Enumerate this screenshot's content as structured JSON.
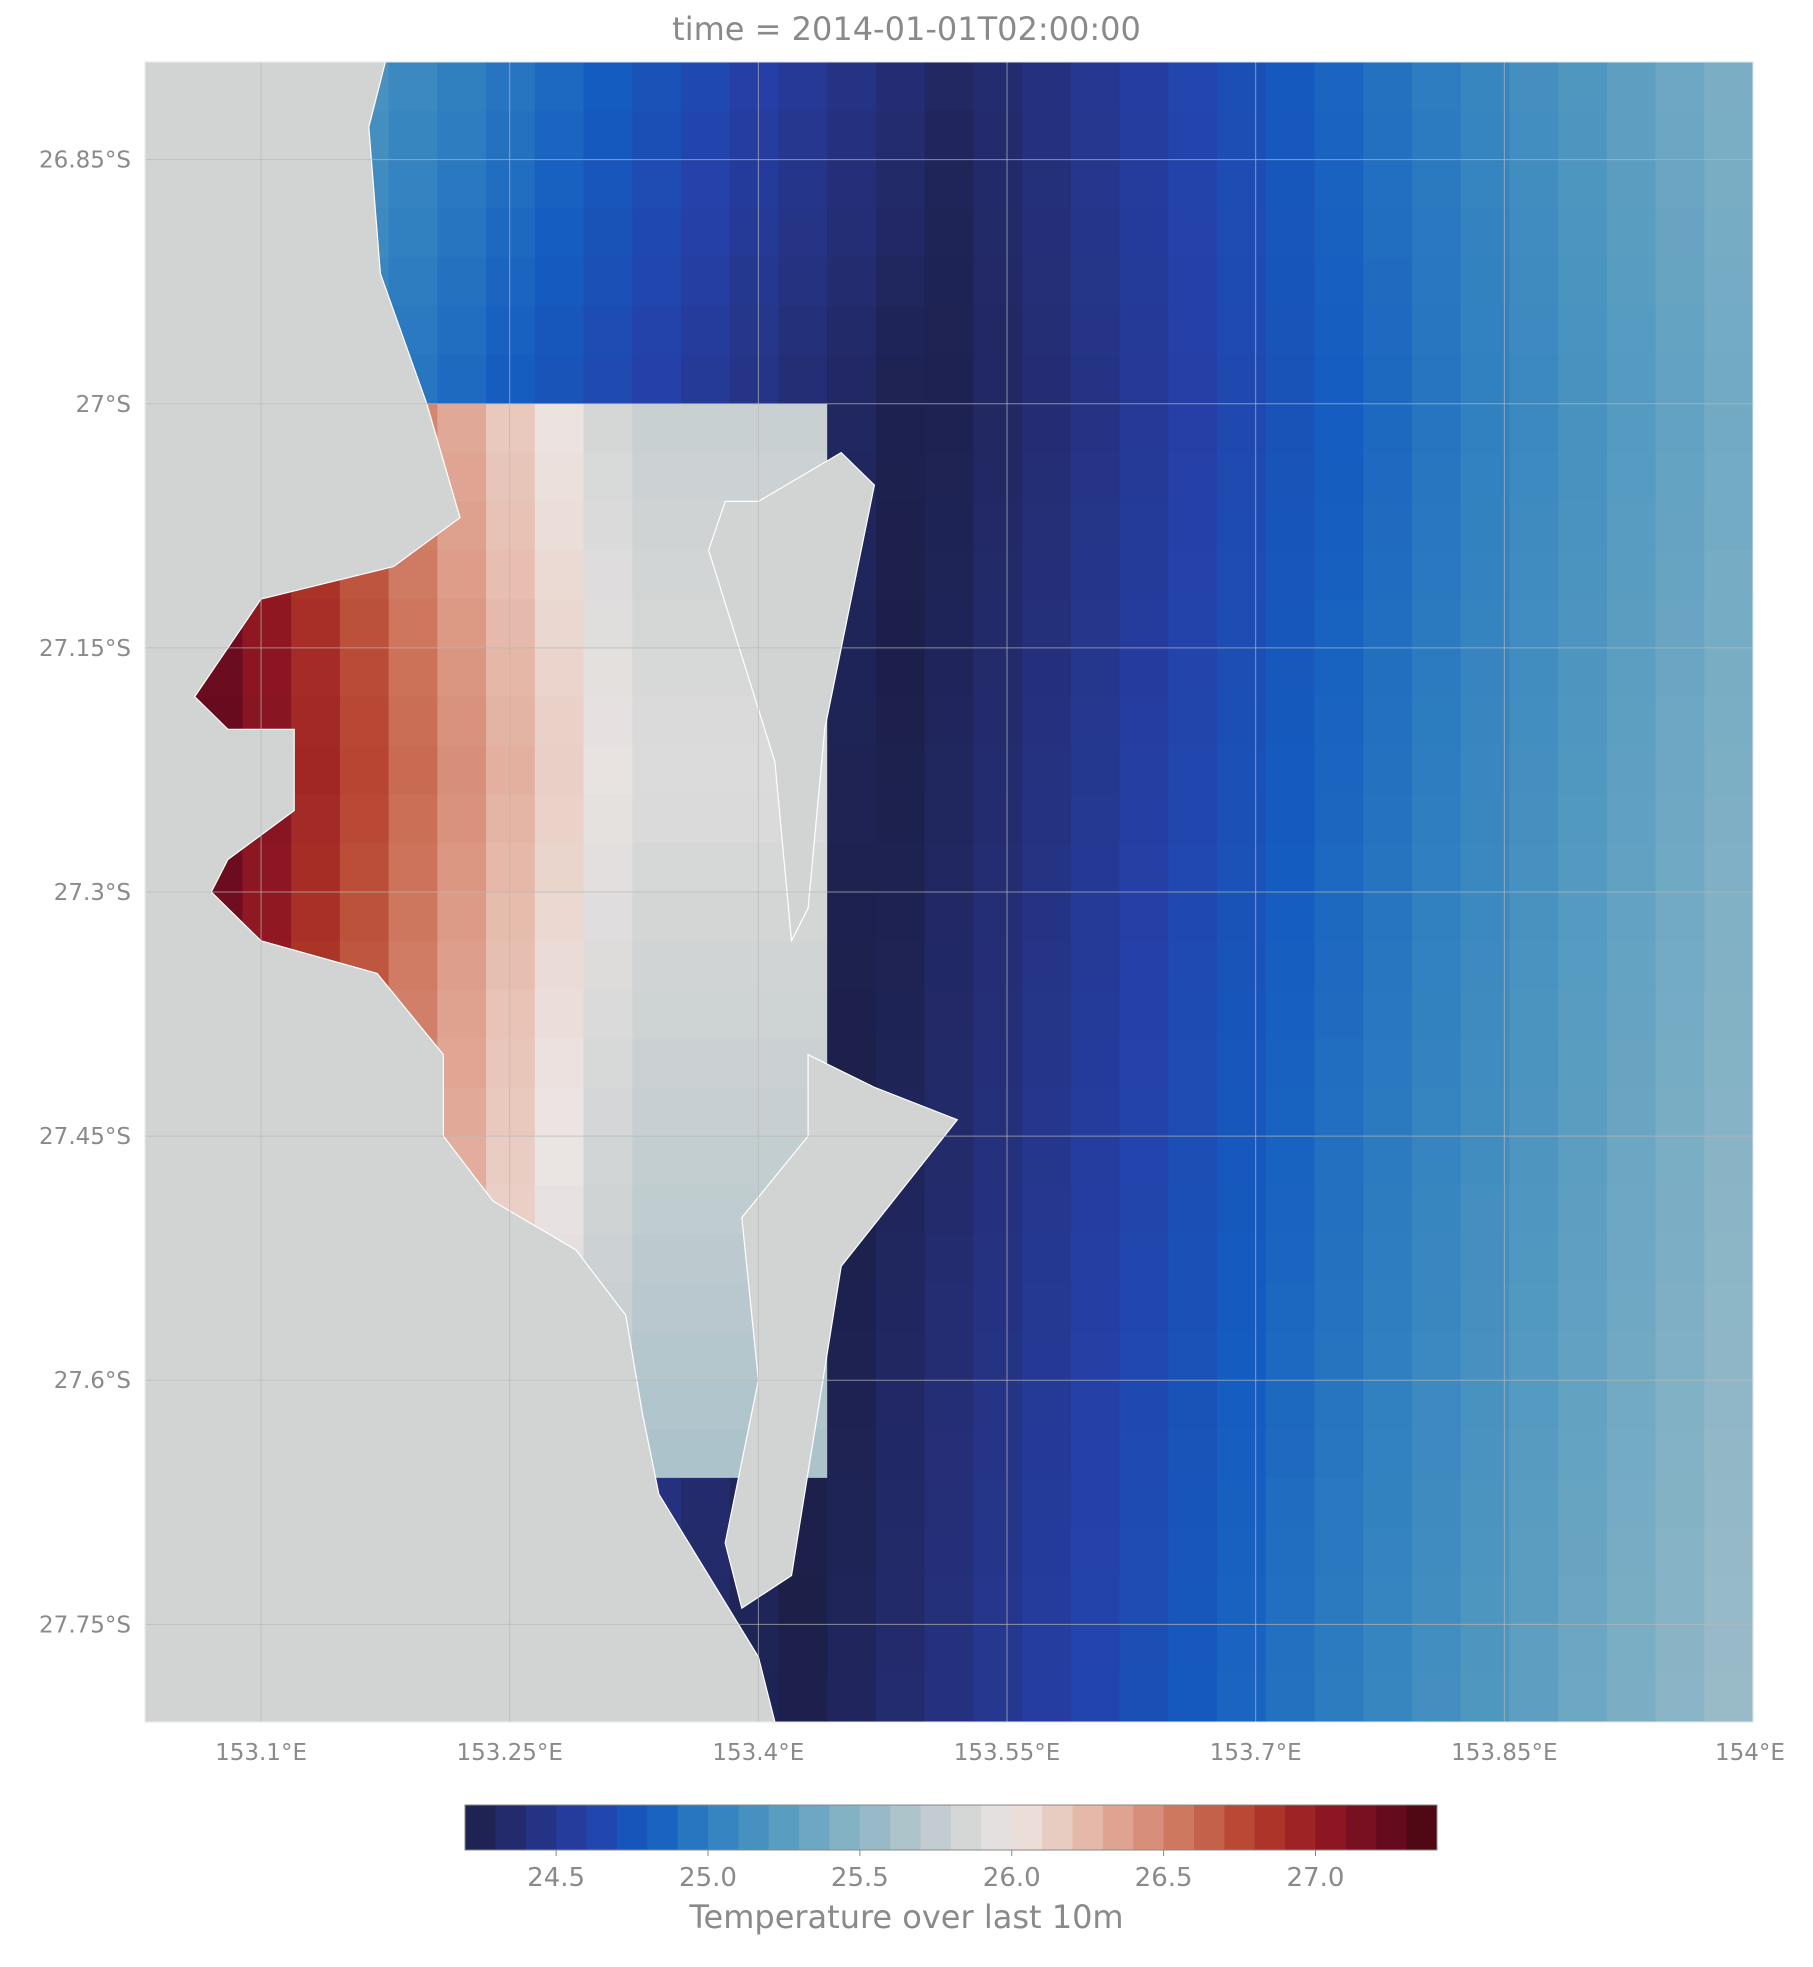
{
  "title": "time = 2014-01-01T02:00:00",
  "colors": {
    "land": "#d2d4d4",
    "grid": "#b8b8b8",
    "ticks": "#8a8a8a"
  },
  "map": {
    "x_axis": {
      "range": [
        153.03,
        154.0
      ],
      "ticks": [
        {
          "value": 153.1,
          "label": "153.1°E"
        },
        {
          "value": 153.25,
          "label": "153.25°E"
        },
        {
          "value": 153.4,
          "label": "153.4°E"
        },
        {
          "value": 153.55,
          "label": "153.55°E"
        },
        {
          "value": 153.7,
          "label": "153.7°E"
        },
        {
          "value": 153.85,
          "label": "153.85°E"
        },
        {
          "value": 154.0,
          "label": "154°E"
        }
      ]
    },
    "y_axis": {
      "range": [
        -26.79,
        -27.81
      ],
      "ticks": [
        {
          "value": -26.85,
          "label": "26.85°S"
        },
        {
          "value": -27.0,
          "label": "27°S"
        },
        {
          "value": -27.15,
          "label": "27.15°S"
        },
        {
          "value": -27.3,
          "label": "27.3°S"
        },
        {
          "value": -27.45,
          "label": "27.45°S"
        },
        {
          "value": -27.6,
          "label": "27.6°S"
        },
        {
          "value": -27.75,
          "label": "27.75°S"
        }
      ]
    },
    "grid": true,
    "field": {
      "name": "Temperature over last 10m",
      "note_cells": "values in °C, 33 columns x 34 rows, lon 153.03..154.0, lat -26.79..-27.81",
      "cols": 33,
      "rows": 34,
      "lon_start": 153.03,
      "lon_end": 154.0,
      "lat_start": -26.79,
      "lat_end": -27.81
    }
  },
  "colorbar": {
    "vmin": 24.2,
    "vmax": 27.4,
    "ticks": [
      {
        "value": 24.5,
        "label": "24.5"
      },
      {
        "value": 25.0,
        "label": "25.0"
      },
      {
        "value": 25.5,
        "label": "25.5"
      },
      {
        "value": 26.0,
        "label": "26.0"
      },
      {
        "value": 26.5,
        "label": "26.5"
      },
      {
        "value": 27.0,
        "label": "27.0"
      }
    ],
    "stops": [
      "#1c1f48",
      "#252f78",
      "#2540a8",
      "#145cc0",
      "#2e7ec0",
      "#4f97c0",
      "#78adc4",
      "#a3bfc9",
      "#cdd2d3",
      "#ece5e3",
      "#e8c3b6",
      "#dc9a85",
      "#ca6d54",
      "#b33d2a",
      "#961a22",
      "#6e0c22",
      "#45070f"
    ],
    "label": "Temperature over last 10m"
  }
}
